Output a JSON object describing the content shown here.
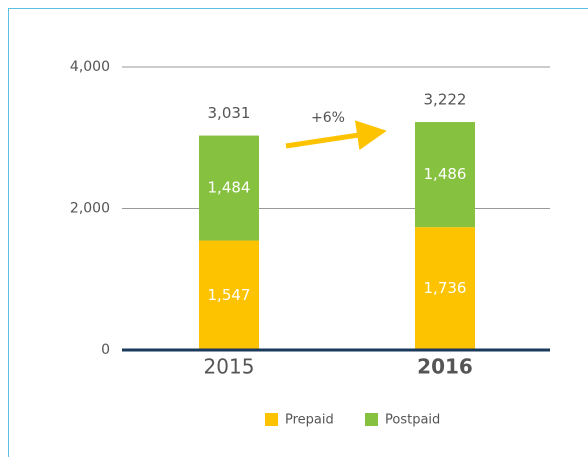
{
  "chart_data": {
    "type": "stacked-bar",
    "categories": [
      "2015",
      "2016"
    ],
    "series": [
      {
        "name": "Prepaid",
        "color": "#fdc300",
        "values": [
          1547,
          1736
        ],
        "value_labels": [
          "1,547",
          "1,736"
        ]
      },
      {
        "name": "Postpaid",
        "color": "#86c140",
        "values": [
          1484,
          1486
        ],
        "value_labels": [
          "1,484",
          "1,486"
        ]
      }
    ],
    "totals": [
      3031,
      3222
    ],
    "total_labels": [
      "3,031",
      "3,222"
    ],
    "annotation": "+6%",
    "ylim": [
      0,
      4000
    ],
    "yticks": [
      0,
      {
        "value": 2000,
        "label": "2,000"
      },
      {
        "value": 4000,
        "label": "4,000"
      }
    ],
    "grid": true,
    "legend": "bottom"
  }
}
